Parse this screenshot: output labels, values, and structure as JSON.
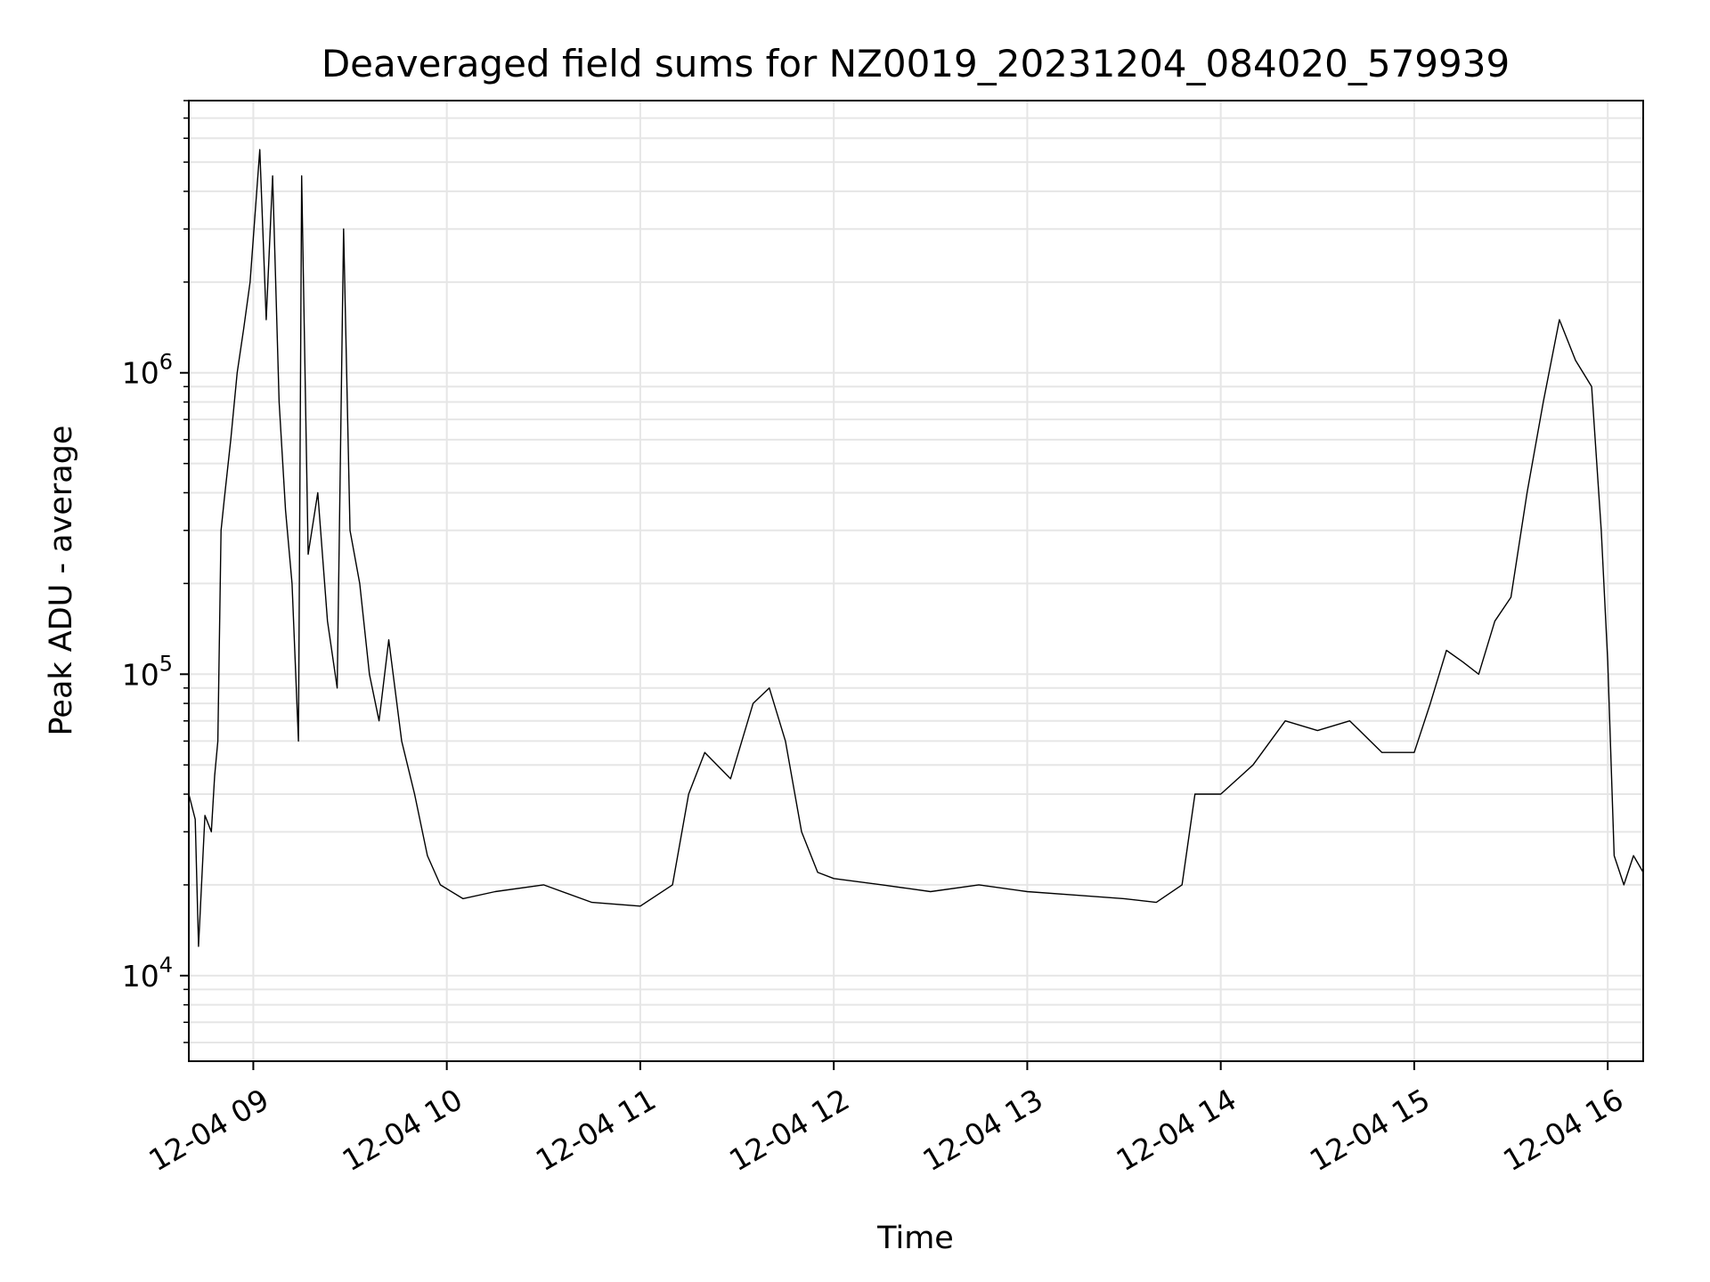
{
  "chart_data": {
    "type": "line",
    "title": "Deaveraged field sums for NZ0019_20231204_084020_579939",
    "xlabel": "Time",
    "ylabel": "Peak ADU - average",
    "y_scale": "log",
    "ylim": [
      5200,
      8000000
    ],
    "xlim": [
      "2023-12-04 08:40",
      "2023-12-04 16:11"
    ],
    "grid": true,
    "x_ticks": [
      "12-04 09",
      "12-04 10",
      "12-04 11",
      "12-04 12",
      "12-04 13",
      "12-04 14",
      "12-04 15",
      "12-04 16"
    ],
    "y_ticks": [
      {
        "base": "10",
        "exp": "4",
        "value": 10000
      },
      {
        "base": "10",
        "exp": "5",
        "value": 100000
      },
      {
        "base": "10",
        "exp": "6",
        "value": 1000000
      }
    ],
    "line_color": "#000000",
    "series": [
      {
        "points": [
          [
            "2023-12-04 08:40",
            40000
          ],
          [
            "2023-12-04 08:42",
            33000
          ],
          [
            "2023-12-04 08:43",
            12500
          ],
          [
            "2023-12-04 08:45",
            34000
          ],
          [
            "2023-12-04 08:47",
            30000
          ],
          [
            "2023-12-04 08:48",
            46000
          ],
          [
            "2023-12-04 08:49",
            60000
          ],
          [
            "2023-12-04 08:50",
            300000
          ],
          [
            "2023-12-04 08:51",
            380000
          ],
          [
            "2023-12-04 08:53",
            600000
          ],
          [
            "2023-12-04 08:55",
            1000000
          ],
          [
            "2023-12-04 08:57",
            1400000
          ],
          [
            "2023-12-04 08:59",
            2000000
          ],
          [
            "2023-12-04 09:02",
            5500000
          ],
          [
            "2023-12-04 09:04",
            1500000
          ],
          [
            "2023-12-04 09:06",
            4500000
          ],
          [
            "2023-12-04 09:08",
            800000
          ],
          [
            "2023-12-04 09:10",
            350000
          ],
          [
            "2023-12-04 09:12",
            200000
          ],
          [
            "2023-12-04 09:14",
            60000
          ],
          [
            "2023-12-04 09:15",
            4500000
          ],
          [
            "2023-12-04 09:17",
            250000
          ],
          [
            "2023-12-04 09:20",
            400000
          ],
          [
            "2023-12-04 09:23",
            150000
          ],
          [
            "2023-12-04 09:26",
            90000
          ],
          [
            "2023-12-04 09:28",
            3000000
          ],
          [
            "2023-12-04 09:30",
            300000
          ],
          [
            "2023-12-04 09:33",
            200000
          ],
          [
            "2023-12-04 09:36",
            100000
          ],
          [
            "2023-12-04 09:39",
            70000
          ],
          [
            "2023-12-04 09:42",
            130000
          ],
          [
            "2023-12-04 09:46",
            60000
          ],
          [
            "2023-12-04 09:50",
            40000
          ],
          [
            "2023-12-04 09:54",
            25000
          ],
          [
            "2023-12-04 09:58",
            20000
          ],
          [
            "2023-12-04 10:05",
            18000
          ],
          [
            "2023-12-04 10:15",
            19000
          ],
          [
            "2023-12-04 10:30",
            20000
          ],
          [
            "2023-12-04 10:45",
            17500
          ],
          [
            "2023-12-04 11:00",
            17000
          ],
          [
            "2023-12-04 11:10",
            20000
          ],
          [
            "2023-12-04 11:15",
            40000
          ],
          [
            "2023-12-04 11:20",
            55000
          ],
          [
            "2023-12-04 11:28",
            45000
          ],
          [
            "2023-12-04 11:35",
            80000
          ],
          [
            "2023-12-04 11:40",
            90000
          ],
          [
            "2023-12-04 11:45",
            60000
          ],
          [
            "2023-12-04 11:50",
            30000
          ],
          [
            "2023-12-04 11:55",
            22000
          ],
          [
            "2023-12-04 12:00",
            21000
          ],
          [
            "2023-12-04 12:15",
            20000
          ],
          [
            "2023-12-04 12:30",
            19000
          ],
          [
            "2023-12-04 12:45",
            20000
          ],
          [
            "2023-12-04 13:00",
            19000
          ],
          [
            "2023-12-04 13:15",
            18500
          ],
          [
            "2023-12-04 13:30",
            18000
          ],
          [
            "2023-12-04 13:40",
            17500
          ],
          [
            "2023-12-04 13:48",
            20000
          ],
          [
            "2023-12-04 13:52",
            40000
          ],
          [
            "2023-12-04 14:00",
            40000
          ],
          [
            "2023-12-04 14:10",
            50000
          ],
          [
            "2023-12-04 14:20",
            70000
          ],
          [
            "2023-12-04 14:30",
            65000
          ],
          [
            "2023-12-04 14:40",
            70000
          ],
          [
            "2023-12-04 14:50",
            55000
          ],
          [
            "2023-12-04 15:00",
            55000
          ],
          [
            "2023-12-04 15:05",
            80000
          ],
          [
            "2023-12-04 15:10",
            120000
          ],
          [
            "2023-12-04 15:15",
            110000
          ],
          [
            "2023-12-04 15:20",
            100000
          ],
          [
            "2023-12-04 15:25",
            150000
          ],
          [
            "2023-12-04 15:30",
            180000
          ],
          [
            "2023-12-04 15:35",
            400000
          ],
          [
            "2023-12-04 15:40",
            800000
          ],
          [
            "2023-12-04 15:45",
            1500000
          ],
          [
            "2023-12-04 15:50",
            1100000
          ],
          [
            "2023-12-04 15:55",
            900000
          ],
          [
            "2023-12-04 15:58",
            300000
          ],
          [
            "2023-12-04 16:00",
            110000
          ],
          [
            "2023-12-04 16:02",
            25000
          ],
          [
            "2023-12-04 16:05",
            20000
          ],
          [
            "2023-12-04 16:08",
            25000
          ],
          [
            "2023-12-04 16:11",
            22000
          ]
        ]
      }
    ]
  }
}
